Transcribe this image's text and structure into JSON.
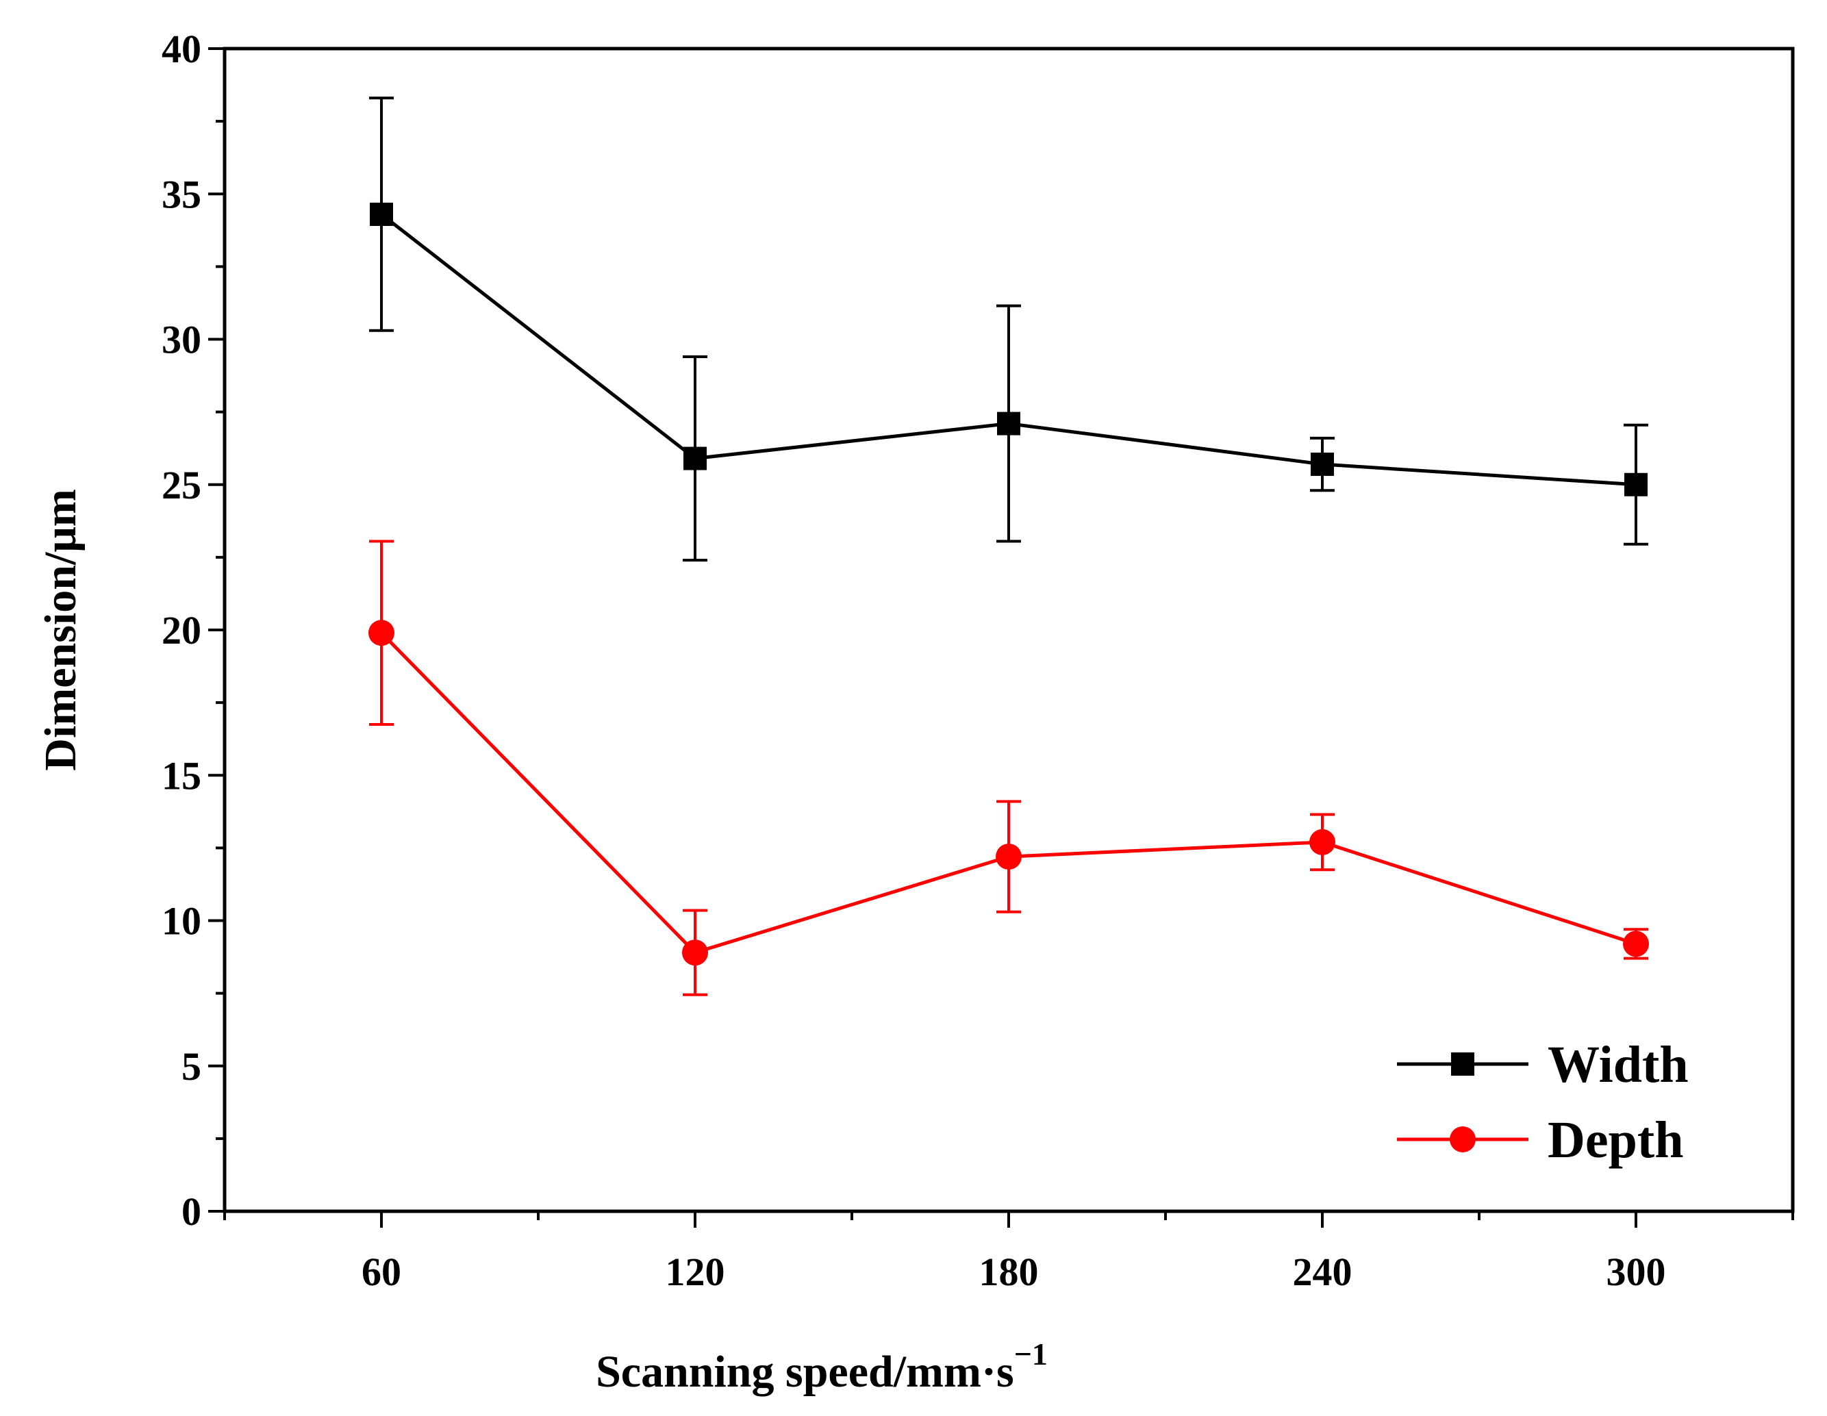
{
  "chart_data": {
    "type": "line",
    "title": "",
    "xlabel": "Scanning speed/mm·s",
    "xlabel_superscript": "−1",
    "ylabel": "Dimension/μm",
    "x": [
      60,
      120,
      180,
      240,
      300
    ],
    "xlim": [
      30,
      330
    ],
    "ylim": [
      0,
      40
    ],
    "x_ticks": [
      60,
      120,
      180,
      240,
      300
    ],
    "x_tick_labels": [
      "60",
      "120",
      "180",
      "240",
      "300"
    ],
    "y_ticks": [
      0,
      5,
      10,
      15,
      20,
      25,
      30,
      35,
      40
    ],
    "y_tick_labels": [
      "0",
      "5",
      "10",
      "15",
      "20",
      "25",
      "30",
      "35",
      "40"
    ],
    "grid": false,
    "legend_position": "bottom-right",
    "series": [
      {
        "name": "Width",
        "color": "#000000",
        "marker": "square",
        "values": [
          34.3,
          25.9,
          27.1,
          25.7,
          25.0
        ],
        "errors": [
          4.0,
          3.5,
          4.05,
          0.9,
          2.05
        ]
      },
      {
        "name": "Depth",
        "color": "#ff0000",
        "marker": "circle",
        "values": [
          19.9,
          8.9,
          12.2,
          12.7,
          9.2
        ],
        "errors": [
          3.15,
          1.45,
          1.9,
          0.95,
          0.5
        ]
      }
    ]
  }
}
